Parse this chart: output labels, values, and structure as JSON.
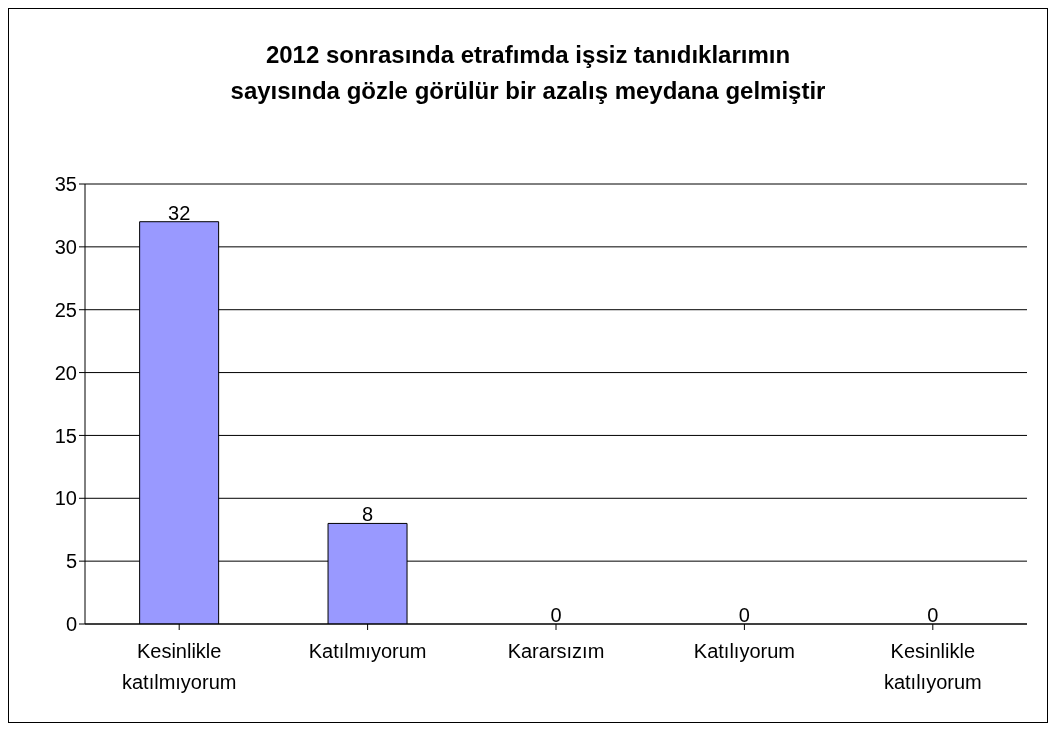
{
  "chart_data": {
    "type": "bar",
    "title": "2012 sonrasında etrafımda işsiz tanıdıklarımın sayısında gözle görülür bir azalış meydana gelmiştir",
    "categories": [
      "Kesinlikle katılmıyorum",
      "Katılmıyorum",
      "Kararsızım",
      "Katılıyorum",
      "Kesinlikle katılıyorum"
    ],
    "values": [
      32,
      8,
      0,
      0,
      0
    ],
    "color": "#9999ff",
    "ylim": [
      0,
      35
    ],
    "yticks": [
      0,
      5,
      10,
      15,
      20,
      25,
      30,
      35
    ],
    "grid": "y",
    "data_labels": true
  }
}
